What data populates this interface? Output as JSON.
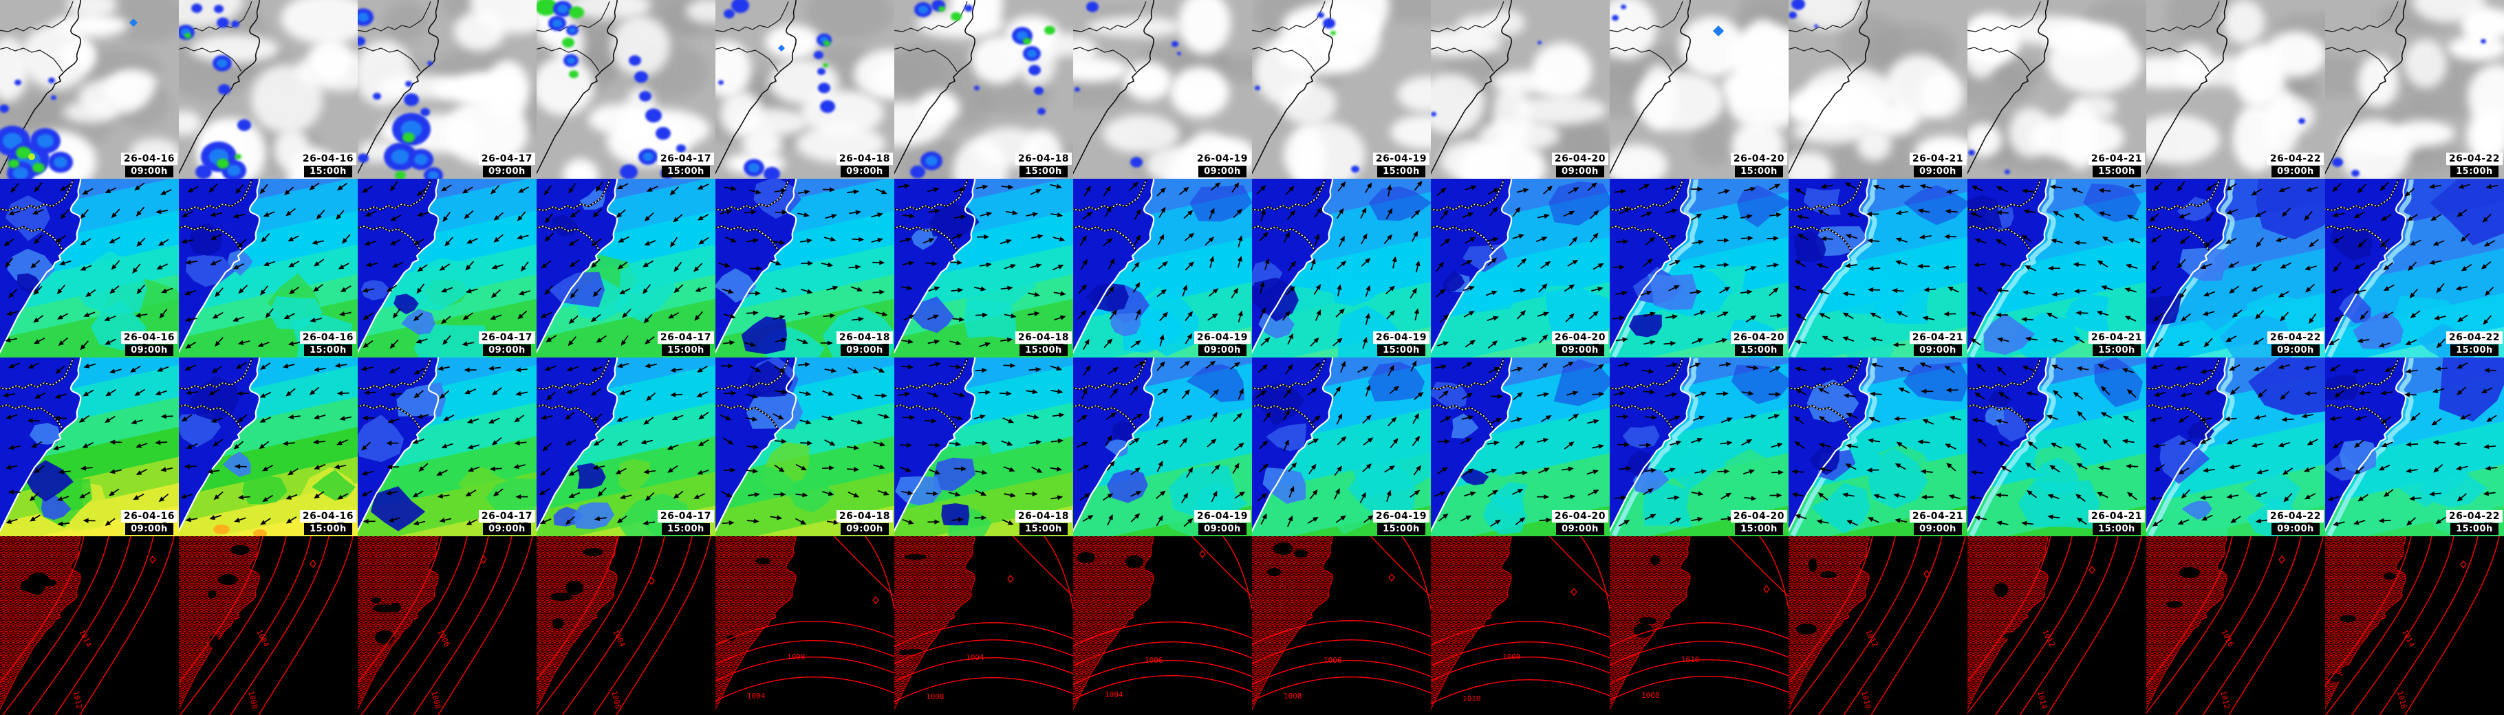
{
  "forecast_grid": {
    "rows": [
      {
        "kind": "cloud-precipitation"
      },
      {
        "kind": "wind-speed"
      },
      {
        "kind": "wind-gust"
      },
      {
        "kind": "surface-pressure"
      }
    ],
    "columns": [
      {
        "date": "26-04-16",
        "time": "09:00h"
      },
      {
        "date": "26-04-16",
        "time": "15:00h"
      },
      {
        "date": "26-04-17",
        "time": "09:00h"
      },
      {
        "date": "26-04-17",
        "time": "15:00h"
      },
      {
        "date": "26-04-18",
        "time": "09:00h"
      },
      {
        "date": "26-04-18",
        "time": "15:00h"
      },
      {
        "date": "26-04-19",
        "time": "09:00h"
      },
      {
        "date": "26-04-19",
        "time": "15:00h"
      },
      {
        "date": "26-04-20",
        "time": "09:00h"
      },
      {
        "date": "26-04-20",
        "time": "15:00h"
      },
      {
        "date": "26-04-21",
        "time": "09:00h"
      },
      {
        "date": "26-04-21",
        "time": "15:00h"
      },
      {
        "date": "26-04-22",
        "time": "09:00h"
      },
      {
        "date": "26-04-22",
        "time": "15:00h"
      }
    ]
  },
  "pressure_contour_labels": [
    "1004",
    "1006",
    "1008",
    "1010",
    "1012",
    "1014",
    "1016"
  ],
  "isobar_labels_by_column": [
    [
      "1014",
      "1012"
    ],
    [
      "1004",
      "1008"
    ],
    [
      "1006",
      "1008"
    ],
    [
      "1004",
      "1006"
    ],
    [
      "1008",
      "1004"
    ],
    [
      "1004",
      "1008"
    ],
    [
      "1006",
      "1004"
    ],
    [
      "1006",
      "1008"
    ],
    [
      "1008",
      "1010"
    ],
    [
      "1010",
      "1008"
    ],
    [
      "1012",
      "1010"
    ],
    [
      "1012",
      "1014"
    ],
    [
      "1016",
      "1012"
    ],
    [
      "1014",
      "1016"
    ]
  ],
  "palette": {
    "cloud_base_gray": "#b4b4b4",
    "cloud_white": "#ffffff",
    "cloud_dark_gray": "#9d9d9d",
    "coastline_row1": "#111111",
    "precip_blue": "#2138ee",
    "precip_light_blue": "#1f7cf4",
    "precip_green": "#2ad72a",
    "precip_yellow_green": "#b8f71e",
    "wind_land_navy": "#0a16cf",
    "wind_blue": "#2c86f2",
    "wind_cyan": "#00cff2",
    "wind_teal": "#12e2cc",
    "wind_spring_green": "#2ce794",
    "wind_green": "#2fd84a",
    "wind_yellow_green": "#abe62e",
    "wind_yellow": "#f4ef3a",
    "wind_orange": "#ffb01e",
    "coastline_row23": "#ffffff",
    "arrow_black": "#000000",
    "pressure_bg": "#000000",
    "isobar_red": "#ff0000",
    "label_date_bg": "#ffffff",
    "label_date_fg": "#000000",
    "label_time_bg": "#000000",
    "label_time_fg": "#ffffff"
  }
}
